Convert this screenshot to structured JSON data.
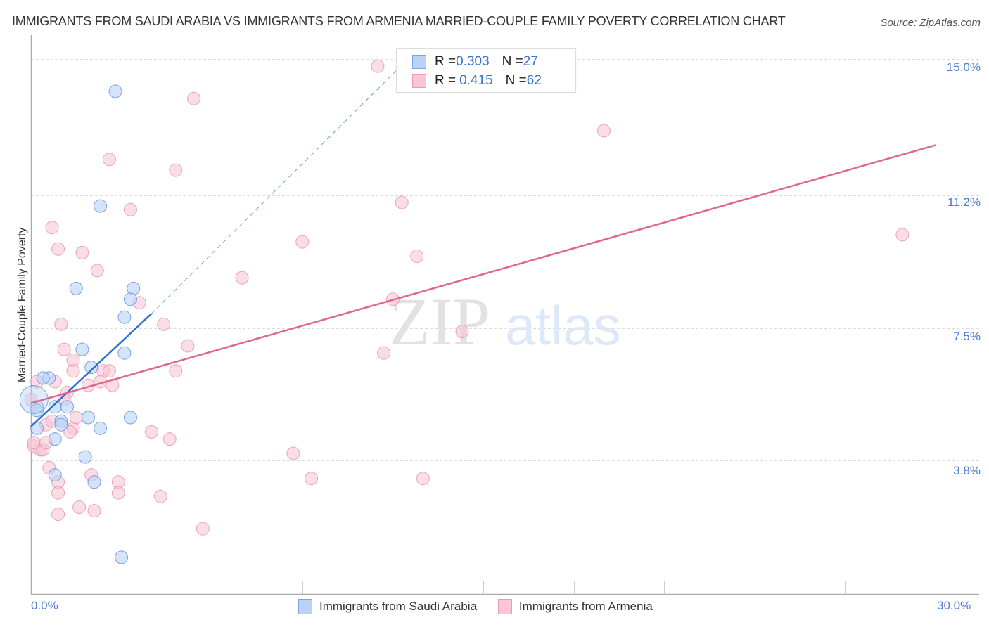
{
  "title": "IMMIGRANTS FROM SAUDI ARABIA VS IMMIGRANTS FROM ARMENIA MARRIED-COUPLE FAMILY POVERTY CORRELATION CHART",
  "source": "Source: ZipAtlas.com",
  "watermark": {
    "zip": "ZIP",
    "atlas": "atlas"
  },
  "colors": {
    "blue": "#5b8fe0",
    "blue_fill": "#b9d2f5",
    "blue_line": "#2f6fd0",
    "pink": "#e58aa8",
    "pink_fill": "#f8c6d6",
    "pink_line": "#e06690",
    "tick_text": "#4a7bd0"
  },
  "legend": {
    "rows": [
      {
        "r_label": "R = ",
        "r_value": "0.303",
        "n_label": "N = ",
        "n_value": "27"
      },
      {
        "r_label": "R = ",
        "r_value": "0.415",
        "n_label": "N = ",
        "n_value": "62"
      }
    ],
    "bottom": [
      "Immigrants from Saudi Arabia",
      "Immigrants from Armenia"
    ]
  },
  "axes": {
    "ylabel": "Married-Couple Family Poverty",
    "yticks": [
      "15.0%",
      "11.2%",
      "7.5%",
      "3.8%"
    ],
    "xticks": [
      "0.0%",
      "30.0%"
    ]
  },
  "chart_data": {
    "type": "scatter",
    "title": "IMMIGRANTS FROM SAUDI ARABIA VS IMMIGRANTS FROM ARMENIA MARRIED-COUPLE FAMILY POVERTY CORRELATION CHART",
    "xlabel": "",
    "ylabel": "Married-Couple Family Poverty",
    "xlim": [
      0,
      30
    ],
    "ylim": [
      0,
      15.5
    ],
    "x_tick_labels": [
      "0.0%",
      "30.0%"
    ],
    "y_tick_values": [
      3.8,
      7.5,
      11.2,
      15.0
    ],
    "grid": true,
    "legend_position": "top-center (stats) and bottom (series)",
    "series": [
      {
        "name": "Immigrants from Saudi Arabia",
        "color": "#5b8fe0",
        "R": 0.303,
        "N": 27,
        "points": [
          [
            2.8,
            14.1
          ],
          [
            2.3,
            10.9
          ],
          [
            1.5,
            8.6
          ],
          [
            3.4,
            8.6
          ],
          [
            3.3,
            8.3
          ],
          [
            3.1,
            7.8
          ],
          [
            1.7,
            6.9
          ],
          [
            3.1,
            6.8
          ],
          [
            2.0,
            6.4
          ],
          [
            0.6,
            6.1
          ],
          [
            0.4,
            6.1
          ],
          [
            0.2,
            5.3
          ],
          [
            0.2,
            5.2
          ],
          [
            0.8,
            5.3
          ],
          [
            1.2,
            5.3
          ],
          [
            1.9,
            5.0
          ],
          [
            3.3,
            5.0
          ],
          [
            1.0,
            4.9
          ],
          [
            1.0,
            4.8
          ],
          [
            2.3,
            4.7
          ],
          [
            0.2,
            4.7
          ],
          [
            0.8,
            4.4
          ],
          [
            1.8,
            3.9
          ],
          [
            0.8,
            3.4
          ],
          [
            2.1,
            3.2
          ],
          [
            3.0,
            1.1
          ],
          [
            0.1,
            5.5
          ]
        ],
        "trendline": {
          "x0": 0.0,
          "y0": 4.75,
          "x1": 4.0,
          "y1": 7.9,
          "dashed_extension_to": [
            12.5,
            15.0
          ]
        }
      },
      {
        "name": "Immigrants from Armenia",
        "color": "#e58aa8",
        "R": 0.415,
        "N": 62,
        "points": [
          [
            11.5,
            14.8
          ],
          [
            5.4,
            13.9
          ],
          [
            19.0,
            13.0
          ],
          [
            2.6,
            12.2
          ],
          [
            4.8,
            11.9
          ],
          [
            12.3,
            11.0
          ],
          [
            3.3,
            10.8
          ],
          [
            0.7,
            10.3
          ],
          [
            28.9,
            10.1
          ],
          [
            9.0,
            9.9
          ],
          [
            0.9,
            9.7
          ],
          [
            1.7,
            9.6
          ],
          [
            12.8,
            9.5
          ],
          [
            2.2,
            9.1
          ],
          [
            7.0,
            8.9
          ],
          [
            12.0,
            8.3
          ],
          [
            3.6,
            8.2
          ],
          [
            1.0,
            7.6
          ],
          [
            4.4,
            7.6
          ],
          [
            14.3,
            7.4
          ],
          [
            5.2,
            7.0
          ],
          [
            1.1,
            6.9
          ],
          [
            11.7,
            6.8
          ],
          [
            1.4,
            6.6
          ],
          [
            1.4,
            6.3
          ],
          [
            2.4,
            6.3
          ],
          [
            4.8,
            6.3
          ],
          [
            0.2,
            6.0
          ],
          [
            2.3,
            6.0
          ],
          [
            0.8,
            6.0
          ],
          [
            1.9,
            5.9
          ],
          [
            2.7,
            5.9
          ],
          [
            1.2,
            5.7
          ],
          [
            1.1,
            5.5
          ],
          [
            0.0,
            5.5
          ],
          [
            0.5,
            4.8
          ],
          [
            1.4,
            4.7
          ],
          [
            1.3,
            4.6
          ],
          [
            0.7,
            4.9
          ],
          [
            4.0,
            4.6
          ],
          [
            4.6,
            4.4
          ],
          [
            0.1,
            4.2
          ],
          [
            0.3,
            4.1
          ],
          [
            0.4,
            4.1
          ],
          [
            8.7,
            4.0
          ],
          [
            0.6,
            3.6
          ],
          [
            2.0,
            3.4
          ],
          [
            0.9,
            3.2
          ],
          [
            9.3,
            3.3
          ],
          [
            13.0,
            3.3
          ],
          [
            2.9,
            3.2
          ],
          [
            2.9,
            2.9
          ],
          [
            0.9,
            2.9
          ],
          [
            4.3,
            2.8
          ],
          [
            1.6,
            2.5
          ],
          [
            2.1,
            2.4
          ],
          [
            0.9,
            2.3
          ],
          [
            5.7,
            1.9
          ],
          [
            0.1,
            4.3
          ],
          [
            0.5,
            4.3
          ],
          [
            1.5,
            5.0
          ],
          [
            2.6,
            6.3
          ]
        ],
        "trendline": {
          "x0": 0.0,
          "y0": 5.4,
          "x1": 30.0,
          "y1": 12.6
        }
      }
    ]
  }
}
